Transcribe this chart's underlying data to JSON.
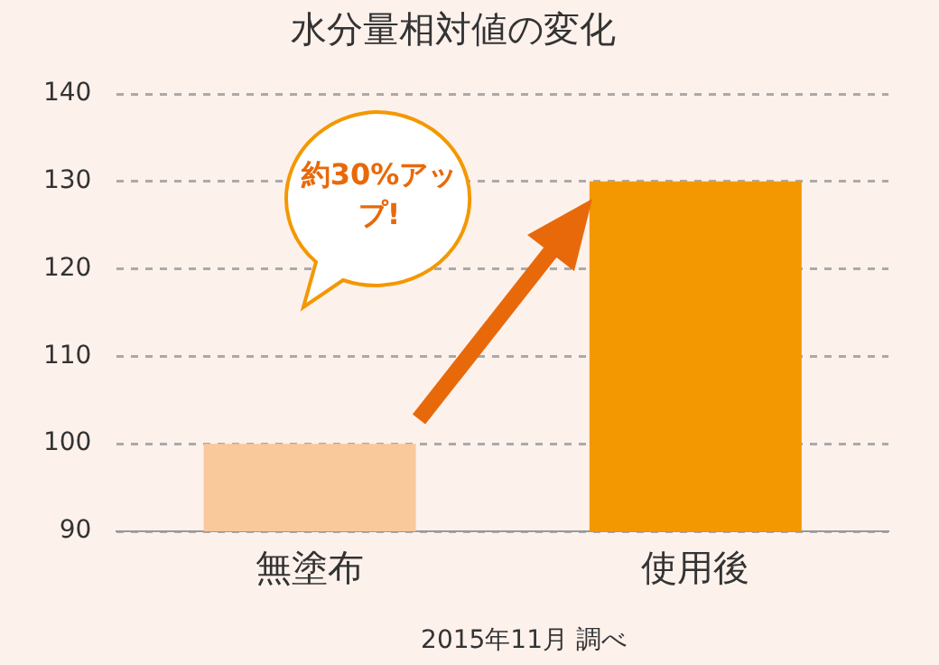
{
  "chart_data": {
    "type": "bar",
    "title": "水分量相対値の変化",
    "categories": [
      "無塗布",
      "使用後"
    ],
    "values": [
      100,
      130
    ],
    "colors": [
      "#f9c89b",
      "#f39800"
    ],
    "ylim": [
      90,
      140
    ],
    "yticks": [
      90,
      100,
      110,
      120,
      130,
      140
    ],
    "grid": "y",
    "legend": false,
    "annotations": [
      "約30%アップ!",
      "2015年11月 調べ"
    ]
  }
}
